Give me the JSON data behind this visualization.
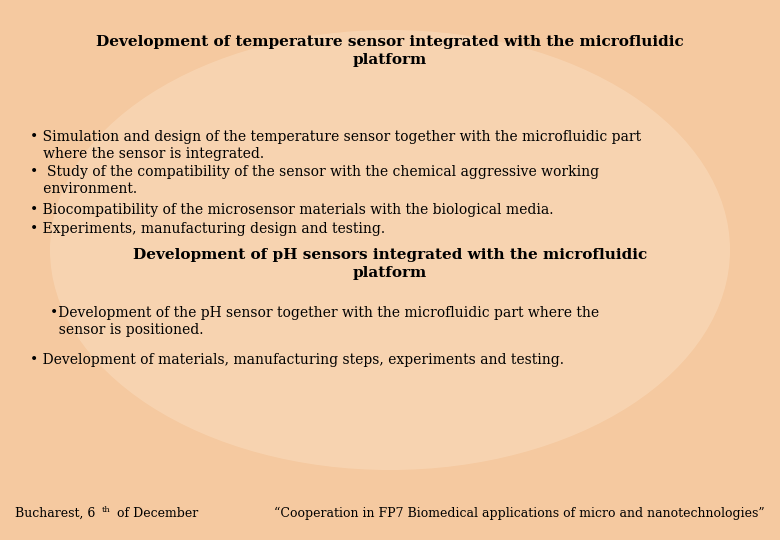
{
  "bg_color": "#f5c9a0",
  "center_color": "#fde8d0",
  "title1": "Development of temperature sensor integrated with the microfluidic\nplatform",
  "title2": "Development of pH sensors integrated with the microfluidic\nplatform",
  "bullet1_lines": [
    "• Simulation and design of the temperature sensor together with the microfluidic part where the sensor is integrated.",
    "•  Study of the compatibility of the sensor with the chemical aggressive working environment.",
    "• Biocompatibility of the microsensor materials with the biological media.",
    "• Experiments, manufacturing design and testing."
  ],
  "bullet2_lines": [
    "•Development of the pH sensor together with the microfluidic part where the sensor is positioned.",
    "• Development of materials, manufacturing steps, experiments and testing."
  ],
  "footer_left_a": "Bucharest, 6",
  "footer_left_super": "th",
  "footer_left_b": " of December",
  "footer_right": "“Cooperation in FP7 Biomedical applications of micro and nanotechnologies”",
  "text_color": "#000000",
  "title_fontsize": 11.0,
  "body_fontsize": 10.0,
  "footer_fontsize": 9.0
}
